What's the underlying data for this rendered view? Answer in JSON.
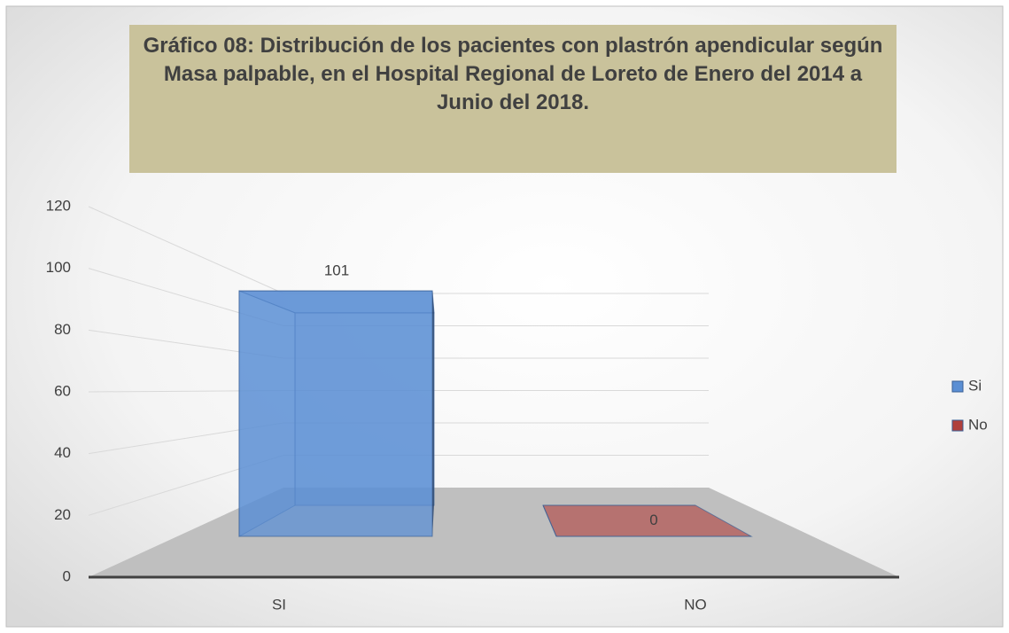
{
  "chart_data": {
    "type": "bar3d",
    "title": "Gráfico 08: Distribución de los pacientes con plastrón apendicular según Masa palpable, en el Hospital Regional de Loreto de Enero del 2014 a Junio del 2018.",
    "categories": [
      "SI",
      "NO"
    ],
    "series": [
      {
        "name": "Si",
        "color": "#5b8fd4",
        "values": [
          101,
          null
        ]
      },
      {
        "name": "No",
        "color": "#b0403c",
        "values": [
          null,
          0
        ]
      }
    ],
    "ylim": [
      0,
      120
    ],
    "yticks": [
      0,
      20,
      40,
      60,
      80,
      100,
      120
    ],
    "grid": true,
    "legend": "right"
  }
}
